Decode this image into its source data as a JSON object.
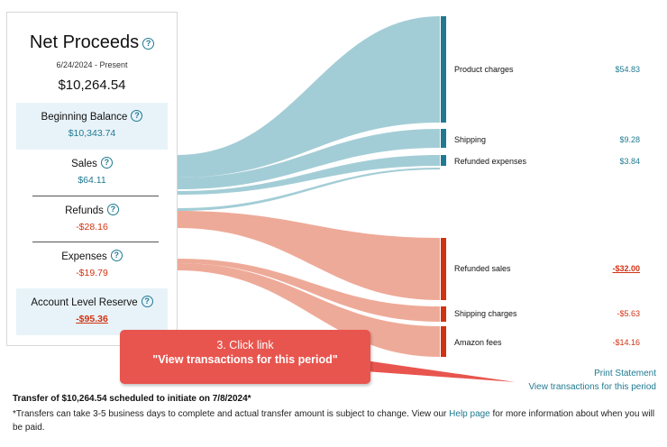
{
  "summary": {
    "title": "Net Proceeds",
    "date_range": "6/24/2024 - Present",
    "amount": "$10,264.54",
    "help_glyph": "?"
  },
  "breakdown": [
    {
      "label": "Beginning Balance",
      "value": "$10,343.74",
      "style": "teal"
    },
    {
      "label": "Sales",
      "value": "$64.11",
      "style": "teal"
    },
    {
      "label": "Refunds",
      "value": "-$28.16",
      "style": "red"
    },
    {
      "label": "Expenses",
      "value": "-$19.79",
      "style": "red"
    },
    {
      "label": "Account Level Reserve",
      "value": "-$95.36",
      "style": "red-underline"
    }
  ],
  "flows": [
    {
      "label": "Product charges",
      "value": "$54.83",
      "style": "teal"
    },
    {
      "label": "Shipping",
      "value": "$9.28",
      "style": "teal"
    },
    {
      "label": "Refunded expenses",
      "value": "$3.84",
      "style": "teal"
    },
    {
      "label": "Refunded sales",
      "value": "-$32.00",
      "style": "red-underline"
    },
    {
      "label": "Shipping charges",
      "value": "-$5.63",
      "style": "red"
    },
    {
      "label": "Amazon fees",
      "value": "-$14.16",
      "style": "red"
    }
  ],
  "callout": {
    "line1": "3. Click link",
    "line2": "\"View transactions for this period\""
  },
  "links": {
    "print_statement": "Print Statement",
    "view_transactions": "View transactions for this period"
  },
  "footer": {
    "transfer_note": "Transfer of $10,264.54 scheduled to initiate on 7/8/2024*",
    "disclaimer_prefix": "*Transfers can take 3-5 business days to complete and actual transfer amount is subject to change. View our ",
    "help_link": "Help page",
    "disclaimer_suffix": " for more information about when you will be paid."
  },
  "colors": {
    "teal_flow": "#a3cdd6",
    "teal_bar": "#1f7a91",
    "salmon_flow": "#eeaa98",
    "red_bar": "#d13212",
    "callout": "#e8554e"
  }
}
